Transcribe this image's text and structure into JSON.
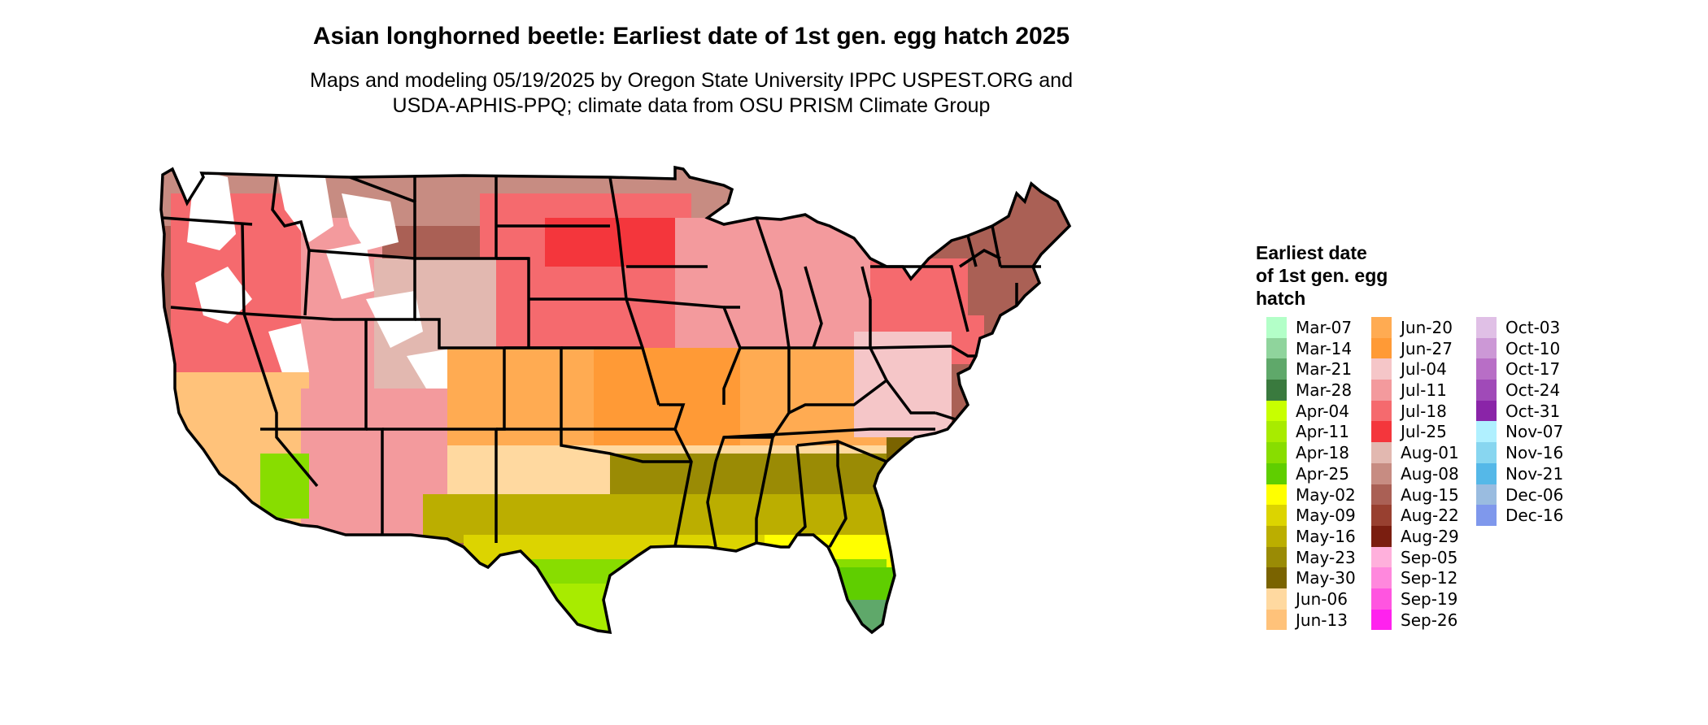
{
  "title": "Asian longhorned beetle: Earliest date of 1st gen. egg hatch 2025",
  "subtitle": [
    "Maps and modeling 05/19/2025 by Oregon State University IPPC USPEST.ORG and",
    "USDA-APHIS-PPQ; climate data from OSU PRISM Climate Group"
  ],
  "legend": {
    "title": [
      "Earliest date",
      "of 1st gen. egg",
      "hatch"
    ],
    "columns": [
      [
        {
          "label": "Mar-07",
          "color": "#b3ffc8"
        },
        {
          "label": "Mar-14",
          "color": "#8fd49c"
        },
        {
          "label": "Mar-21",
          "color": "#5fa86a"
        },
        {
          "label": "Mar-28",
          "color": "#3a7a3e"
        },
        {
          "label": "Apr-04",
          "color": "#c8ff00"
        },
        {
          "label": "Apr-11",
          "color": "#a8eb00"
        },
        {
          "label": "Apr-18",
          "color": "#88dd00"
        },
        {
          "label": "Apr-25",
          "color": "#5fce00"
        },
        {
          "label": "May-02",
          "color": "#ffff00"
        },
        {
          "label": "May-09",
          "color": "#dcd400"
        },
        {
          "label": "May-16",
          "color": "#bbae00"
        },
        {
          "label": "May-23",
          "color": "#9a8b05"
        },
        {
          "label": "May-30",
          "color": "#7a6300"
        },
        {
          "label": "Jun-06",
          "color": "#ffd9a0"
        },
        {
          "label": "Jun-13",
          "color": "#ffc27a"
        }
      ],
      [
        {
          "label": "Jun-20",
          "color": "#ffab52"
        },
        {
          "label": "Jun-27",
          "color": "#ff9a36"
        },
        {
          "label": "Jul-04",
          "color": "#f5c6c8"
        },
        {
          "label": "Jul-11",
          "color": "#f39a9d"
        },
        {
          "label": "Jul-18",
          "color": "#f56a6e"
        },
        {
          "label": "Jul-25",
          "color": "#f4363c"
        },
        {
          "label": "Aug-01",
          "color": "#e2b8b0"
        },
        {
          "label": "Aug-08",
          "color": "#c78c82"
        },
        {
          "label": "Aug-15",
          "color": "#aa6055"
        },
        {
          "label": "Aug-22",
          "color": "#984030"
        },
        {
          "label": "Aug-29",
          "color": "#7a1e10"
        },
        {
          "label": "Sep-05",
          "color": "#ffb0dc"
        },
        {
          "label": "Sep-12",
          "color": "#ff88dd"
        },
        {
          "label": "Sep-19",
          "color": "#ff55e0"
        },
        {
          "label": "Sep-26",
          "color": "#ff22ee"
        }
      ],
      [
        {
          "label": "Oct-03",
          "color": "#e0c0e6"
        },
        {
          "label": "Oct-10",
          "color": "#cc98d6"
        },
        {
          "label": "Oct-17",
          "color": "#b86ec6"
        },
        {
          "label": "Oct-24",
          "color": "#a04ab8"
        },
        {
          "label": "Oct-31",
          "color": "#8a24a8"
        },
        {
          "label": "Nov-07",
          "color": "#b0f0ff"
        },
        {
          "label": "Nov-16",
          "color": "#88d6f0"
        },
        {
          "label": "Nov-21",
          "color": "#55b8e8"
        },
        {
          "label": "Dec-06",
          "color": "#9abce0"
        },
        {
          "label": "Dec-16",
          "color": "#7f98ec"
        }
      ]
    ]
  }
}
